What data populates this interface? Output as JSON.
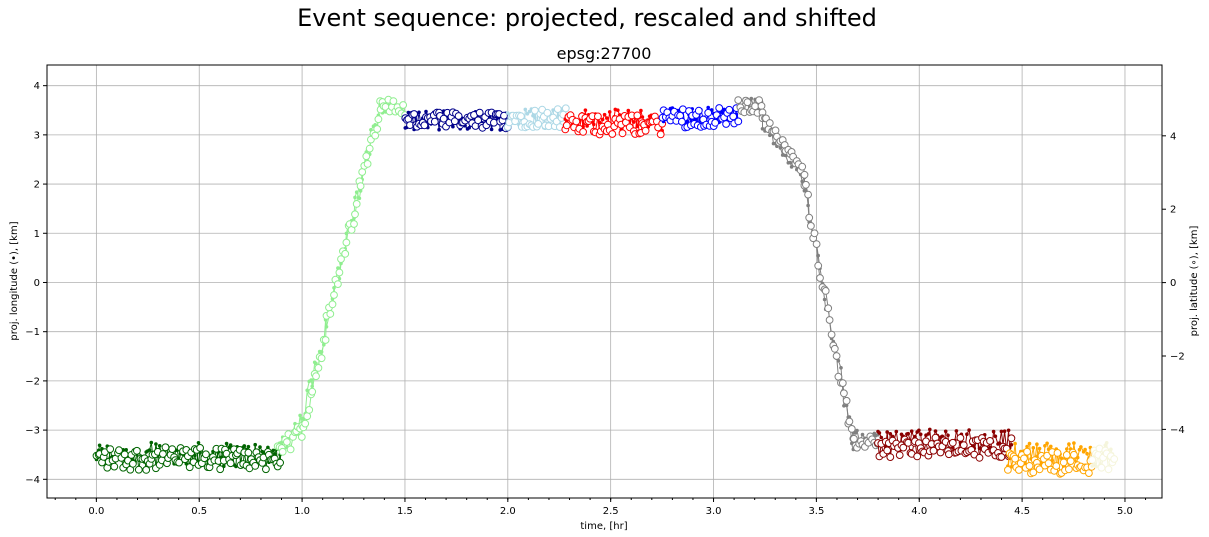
{
  "chart_data": {
    "type": "line",
    "suptitle": "Event sequence: projected, rescaled and shifted",
    "title": "epsg:27700",
    "xlabel": "time, [hr]",
    "ylabel_left": "proj. longitude (•), [km]",
    "ylabel_right": "proj. latitude (∘), [km]",
    "xlim": [
      -0.24,
      5.18
    ],
    "ylim_left": [
      -4.38,
      4.42
    ],
    "ylim_right": [
      -5.87,
      5.93
    ],
    "xticks": [
      "0.0",
      "0.5",
      "1.0",
      "1.5",
      "2.0",
      "2.5",
      "3.0",
      "3.5",
      "4.0",
      "4.5",
      "5.0"
    ],
    "xtick_values": [
      0,
      0.5,
      1,
      1.5,
      2,
      2.5,
      3,
      3.5,
      4,
      4.5,
      5
    ],
    "yticks_left": [
      "−4",
      "−3",
      "−2",
      "−1",
      "0",
      "1",
      "2",
      "3",
      "4"
    ],
    "ytick_left_values": [
      -4,
      -3,
      -2,
      -1,
      0,
      1,
      2,
      3,
      4
    ],
    "yticks_right": [
      "−4",
      "−2",
      "0",
      "2",
      "4"
    ],
    "ytick_right_values": [
      -4,
      -2,
      0,
      2,
      4
    ],
    "grid": true,
    "series": [
      {
        "color": "#006400",
        "segments": [
          {
            "t0": 0.0,
            "t1": 0.9,
            "lon": [
              -3.5,
              -3.5
            ],
            "lat": [
              -4.8,
              -4.8
            ],
            "noise": 0.25
          }
        ]
      },
      {
        "color": "#90ee90",
        "segments": [
          {
            "t0": 0.88,
            "t1": 1.0,
            "lon": [
              -3.4,
              -2.8
            ],
            "lat": [
              -4.7,
              -4.0
            ],
            "noise": 0.2
          },
          {
            "t0": 1.0,
            "t1": 1.38,
            "lon": [
              -2.8,
              3.6
            ],
            "lat": [
              -4.0,
              4.9
            ],
            "noise": 0.25
          },
          {
            "t0": 1.38,
            "t1": 1.5,
            "lon": [
              3.6,
              3.5
            ],
            "lat": [
              4.9,
              4.7
            ],
            "noise": 0.15
          }
        ]
      },
      {
        "color": "#00008b",
        "segments": [
          {
            "t0": 1.5,
            "t1": 2.0,
            "lon": [
              3.3,
              3.3
            ],
            "lat": [
              4.4,
              4.4
            ],
            "noise": 0.2
          }
        ]
      },
      {
        "color": "#add8e6",
        "segments": [
          {
            "t0": 2.0,
            "t1": 2.28,
            "lon": [
              3.35,
              3.35
            ],
            "lat": [
              4.5,
              4.5
            ],
            "noise": 0.22
          }
        ]
      },
      {
        "color": "#ff0000",
        "segments": [
          {
            "t0": 2.28,
            "t1": 2.75,
            "lon": [
              3.3,
              3.3
            ],
            "lat": [
              4.3,
              4.3
            ],
            "noise": 0.22
          }
        ]
      },
      {
        "color": "#0000ff",
        "segments": [
          {
            "t0": 2.75,
            "t1": 3.12,
            "lon": [
              3.35,
              3.35
            ],
            "lat": [
              4.5,
              4.5
            ],
            "noise": 0.22
          }
        ]
      },
      {
        "color": "#808080",
        "segments": [
          {
            "t0": 3.12,
            "t1": 3.24,
            "lon": [
              3.6,
              3.6
            ],
            "lat": [
              4.8,
              4.8
            ],
            "noise": 0.15
          },
          {
            "t0": 3.24,
            "t1": 3.44,
            "lon": [
              3.2,
              2.1
            ],
            "lat": [
              4.5,
              3.0
            ],
            "noise": 0.1
          },
          {
            "t0": 3.44,
            "t1": 3.68,
            "lon": [
              2.0,
              -3.3
            ],
            "lat": [
              2.8,
              -4.5
            ],
            "noise": 0.2
          },
          {
            "t0": 3.68,
            "t1": 3.8,
            "lon": [
              -3.1,
              -3.2
            ],
            "lat": [
              -4.4,
              -4.3
            ],
            "noise": 0.12
          }
        ]
      },
      {
        "color": "#8b0000",
        "segments": [
          {
            "t0": 3.8,
            "t1": 4.45,
            "lon": [
              -3.2,
              -3.2
            ],
            "lat": [
              -4.5,
              -4.5
            ],
            "noise": 0.22
          }
        ]
      },
      {
        "color": "#ffa500",
        "segments": [
          {
            "t0": 4.43,
            "t1": 4.84,
            "lon": [
              -3.5,
              -3.5
            ],
            "lat": [
              -4.9,
              -4.9
            ],
            "noise": 0.25
          }
        ]
      },
      {
        "color": "#f5f5dc",
        "segments": [
          {
            "t0": 4.84,
            "t1": 4.95,
            "lon": [
              -3.5,
              -3.5
            ],
            "lat": [
              -4.8,
              -4.8
            ],
            "noise": 0.25
          }
        ]
      }
    ]
  }
}
